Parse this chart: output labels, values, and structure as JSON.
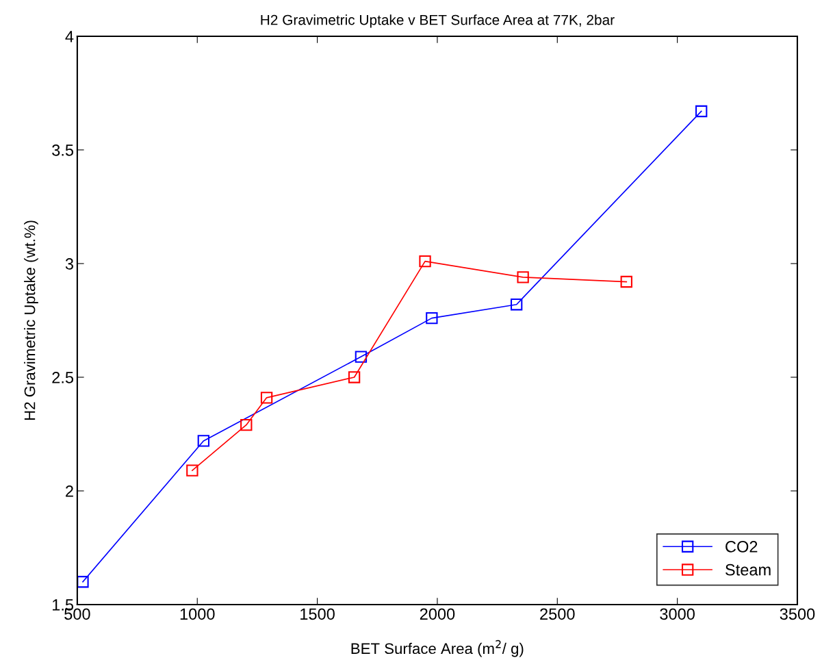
{
  "chart_data": {
    "type": "line",
    "title": "H2 Gravimetric Uptake v BET Surface Area at 77K, 2bar",
    "xlabel": "BET Surface Area (m$^{2}$/ g)",
    "ylabel": "H2 Gravimetric Uptake (wt.%)",
    "series": [
      {
        "name": "CO2",
        "color": "#0000ff",
        "x": [
          523,
          1026,
          1682,
          1977,
          2330,
          3100
        ],
        "values": [
          1.6,
          2.22,
          2.59,
          2.76,
          2.82,
          3.67
        ]
      },
      {
        "name": "Steam",
        "color": "#ff0000",
        "x": [
          979,
          1204,
          1289,
          1654,
          1949,
          2357,
          2788
        ],
        "values": [
          2.09,
          2.29,
          2.41,
          2.5,
          3.01,
          2.94,
          2.92
        ]
      }
    ],
    "xlim": [
      500,
      3500
    ],
    "xticks": [
      500,
      1000,
      1500,
      2000,
      2500,
      3000,
      3500
    ],
    "ylim": [
      1.5,
      4
    ],
    "yticks": [
      1.5,
      2,
      2.5,
      3,
      3.5,
      4
    ],
    "grid": false,
    "legend": "bottom right",
    "marker": "square",
    "line_style": "solid"
  }
}
